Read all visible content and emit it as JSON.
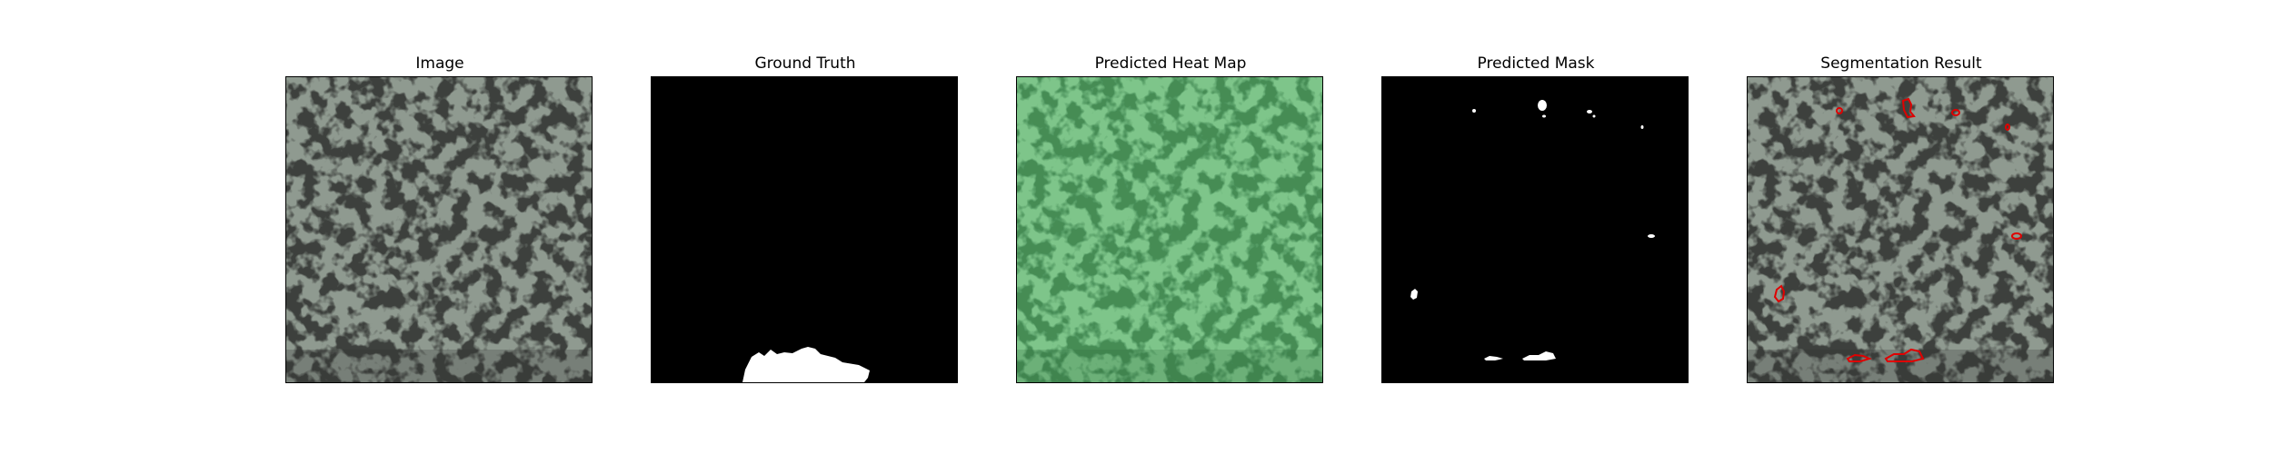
{
  "panels": [
    {
      "id": "image",
      "title": "Image",
      "icon": "speckled-texture-image"
    },
    {
      "id": "ground-truth",
      "title": "Ground Truth",
      "icon": "binary-mask-image"
    },
    {
      "id": "heat-map",
      "title": "Predicted Heat Map",
      "icon": "green-heatmap-image"
    },
    {
      "id": "pred-mask",
      "title": "Predicted Mask",
      "icon": "binary-mask-image"
    },
    {
      "id": "segmentation",
      "title": "Segmentation Result",
      "icon": "contour-overlay-image"
    }
  ],
  "colors": {
    "texture_base": "#8f9a90",
    "texture_dark": "#3c3f3c",
    "heatmap_base": "#7ec58a",
    "heatmap_dark": "#3f8650",
    "mask_background": "#000000",
    "mask_foreground": "#ffffff",
    "contour": "#e00000"
  }
}
